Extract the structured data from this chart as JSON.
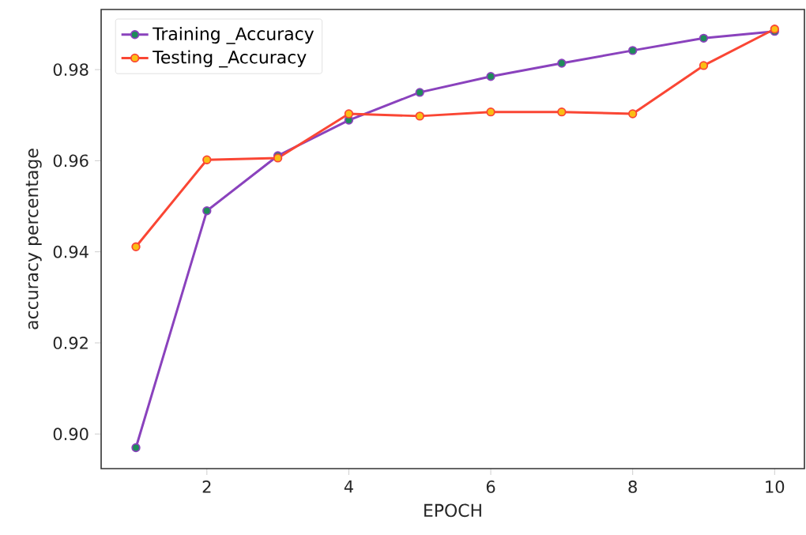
{
  "chart_data": {
    "type": "line",
    "xlabel": "EPOCH",
    "ylabel": "accuracy percentage",
    "x": [
      1,
      2,
      3,
      4,
      5,
      6,
      7,
      8,
      9,
      10
    ],
    "series": [
      {
        "name": "Training _Accuracy",
        "color": "#8a42bd",
        "values": [
          0.897,
          0.949,
          0.9611,
          0.9689,
          0.975,
          0.9785,
          0.9814,
          0.9842,
          0.9869,
          0.9884
        ]
      },
      {
        "name": "Testing _Accuracy",
        "color": "#fa4634",
        "values": [
          0.9411,
          0.9602,
          0.9606,
          0.9703,
          0.9698,
          0.9707,
          0.9707,
          0.9703,
          0.9809,
          0.9889
        ]
      }
    ],
    "xlim": [
      0.51,
      10.42
    ],
    "ylim": [
      0.8924,
      0.9932
    ],
    "xticks": [
      2,
      4,
      6,
      8,
      10
    ],
    "yticks": [
      {
        "value": 0.9,
        "label": "0.90"
      },
      {
        "value": 0.92,
        "label": "0.92"
      },
      {
        "value": 0.94,
        "label": "0.94"
      },
      {
        "value": 0.96,
        "label": "0.96"
      },
      {
        "value": 0.98,
        "label": "0.98"
      }
    ],
    "legend": "top left",
    "marker": "circle",
    "line_style": "solid",
    "grid": false
  }
}
